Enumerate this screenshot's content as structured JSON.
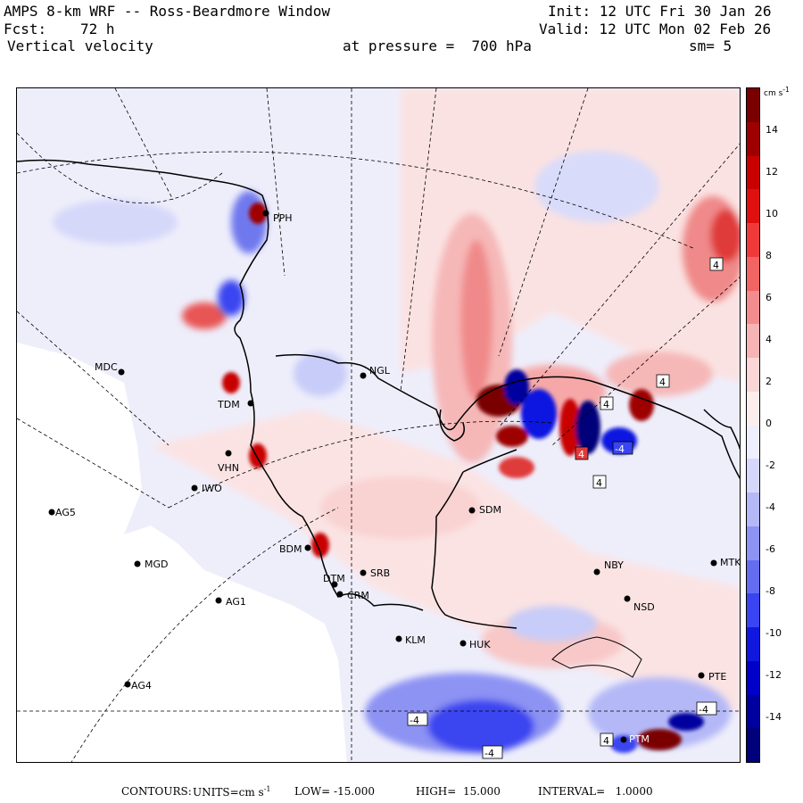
{
  "header": {
    "title": "AMPS 8-km WRF -- Ross-Beardmore Window",
    "init": "Init: 12 UTC Fri 30 Jan 26",
    "fcst_label": "Fcst:",
    "fcst_value": "72 h",
    "valid": "Valid: 12 UTC Mon 02 Feb 26",
    "field": "Vertical velocity",
    "pressure": "at pressure =  700 hPa",
    "smoothing": "sm= 5"
  },
  "colorbar": {
    "units_label": "cm s",
    "units_exp": "-1",
    "ticks": [
      "14",
      "12",
      "10",
      "8",
      "6",
      "4",
      "2",
      "0",
      "-2",
      "-4",
      "-6",
      "-8",
      "-10",
      "-12",
      "-14"
    ],
    "colors": [
      "#7a0000",
      "#9e0000",
      "#c80000",
      "#e01010",
      "#f03a3a",
      "#f06464",
      "#f38d8d",
      "#f7b4b4",
      "#fbd6d6",
      "#fdeeee",
      "#eeeefd",
      "#d6d8fb",
      "#b4b8f7",
      "#8d93f3",
      "#646df0",
      "#3a44f0",
      "#1018e0",
      "#0000c8",
      "#00009e",
      "#00007a"
    ]
  },
  "stations": [
    {
      "code": "PPH"
    },
    {
      "code": "MDC"
    },
    {
      "code": "NGL"
    },
    {
      "code": "TDM"
    },
    {
      "code": "VHN"
    },
    {
      "code": "IWO"
    },
    {
      "code": "AG5"
    },
    {
      "code": "SDM"
    },
    {
      "code": "BDM"
    },
    {
      "code": "MGD"
    },
    {
      "code": "NBY"
    },
    {
      "code": "MTK"
    },
    {
      "code": "DTM"
    },
    {
      "code": "SRB"
    },
    {
      "code": "CRM"
    },
    {
      "code": "AG1"
    },
    {
      "code": "NSD"
    },
    {
      "code": "KLM"
    },
    {
      "code": "HUK"
    },
    {
      "code": "AG4"
    },
    {
      "code": "PTE"
    },
    {
      "code": "PTM"
    }
  ],
  "contour_labels": [
    "4",
    "4",
    "4",
    "-4",
    "4",
    "4",
    "-4",
    "4",
    "-4",
    "-4"
  ],
  "footer": {
    "contours": "CONTOURS:",
    "units": "UNITS=cm s",
    "units_exp": "-1",
    "low": "LOW= -15.000",
    "high": "HIGH=  15.000",
    "interval": "INTERVAL=   1.0000"
  }
}
